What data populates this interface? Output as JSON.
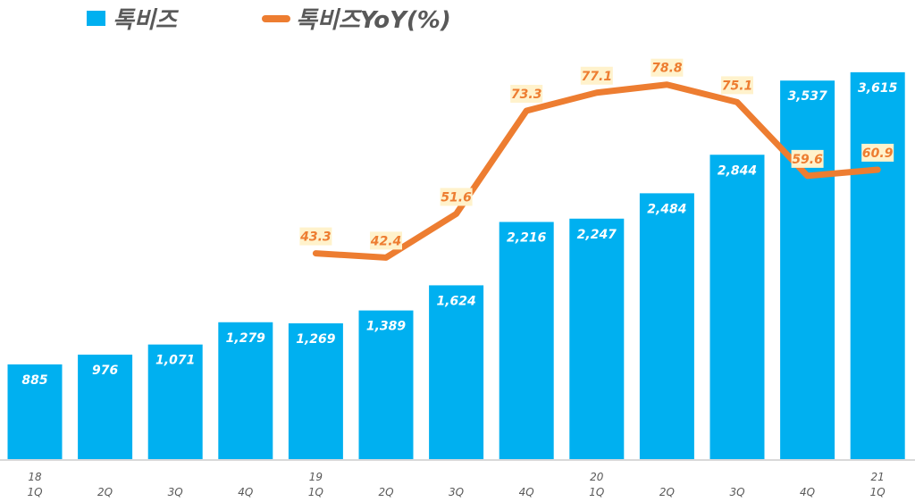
{
  "chart_data": {
    "type": "bar+line",
    "categories": [
      "18\n1Q",
      "2Q",
      "3Q",
      "4Q",
      "19\n1Q",
      "2Q",
      "3Q",
      "4Q",
      "20\n1Q",
      "2Q",
      "3Q",
      "4Q",
      "21\n1Q"
    ],
    "category_years": [
      "18",
      "",
      "",
      "",
      "19",
      "",
      "",
      "",
      "20",
      "",
      "",
      "",
      "21"
    ],
    "category_quarters": [
      "1Q",
      "2Q",
      "3Q",
      "4Q",
      "1Q",
      "2Q",
      "3Q",
      "4Q",
      "1Q",
      "2Q",
      "3Q",
      "4Q",
      "1Q"
    ],
    "series": [
      {
        "name": "톡비즈",
        "type": "bar",
        "color": "#00B0F0",
        "values": [
          885,
          976,
          1071,
          1279,
          1269,
          1389,
          1624,
          2216,
          2247,
          2484,
          2844,
          3537,
          3615
        ],
        "labels": [
          "885",
          "976",
          "1,071",
          "1,279",
          "1,269",
          "1,389",
          "1,624",
          "2,216",
          "2,247",
          "2,484",
          "2,844",
          "3,537",
          "3,615"
        ]
      },
      {
        "name": "톡비즈YoY(%)",
        "type": "line",
        "color": "#ED7D31",
        "values": [
          null,
          null,
          null,
          null,
          43.3,
          42.4,
          51.6,
          73.3,
          77.1,
          78.8,
          75.1,
          59.6,
          60.9
        ],
        "labels": [
          "",
          "",
          "",
          "",
          "43.3",
          "42.4",
          "51.6",
          "73.3",
          "77.1",
          "78.8",
          "75.1",
          "59.6",
          "60.9"
        ]
      }
    ],
    "legend_position": "top-left",
    "grid": false,
    "ylim_bar": [
      0,
      4290
    ],
    "ylim_line": [
      0,
      96.6
    ]
  }
}
